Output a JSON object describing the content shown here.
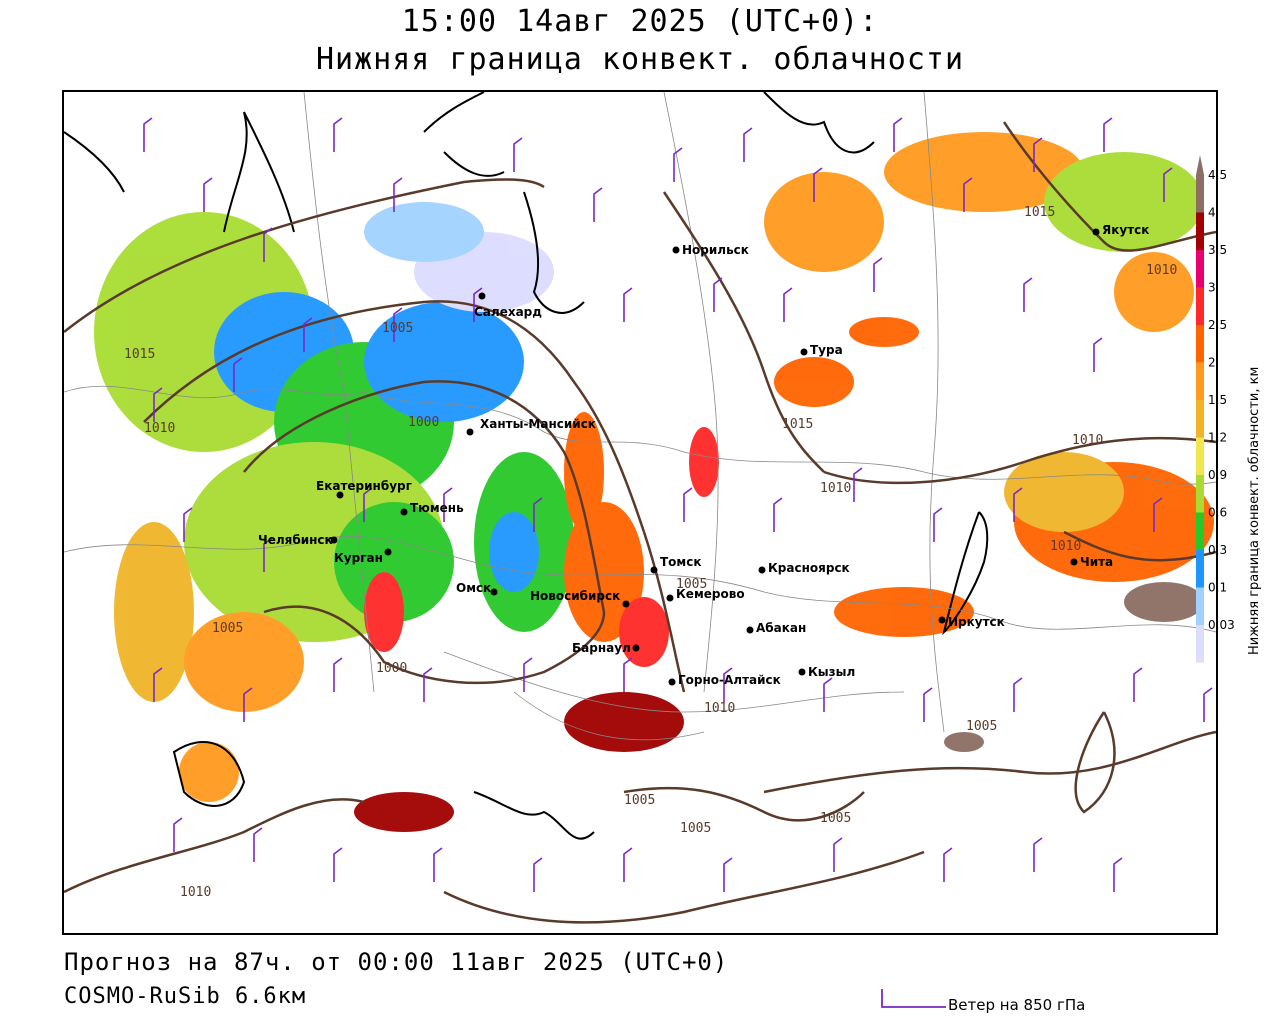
{
  "header": {
    "title_line1": "15:00 14авг 2025 (UTC+0):",
    "title_line2": "Нижняя граница конвект. облачности"
  },
  "footer": {
    "forecast": "Прогноз на 87ч. от 00:00 11авг 2025 (UTC+0)",
    "model": "COSMO-RuSib 6.6км",
    "wind_legend": "Ветер на 850 гПа"
  },
  "legend": {
    "title": "Нижняя граница конвект. облачности, км",
    "ticks": [
      "4.5",
      "4",
      "3.5",
      "3",
      "2.5",
      "2",
      "1.5",
      "1.2",
      "0.9",
      "0.6",
      "0.3",
      "0.1",
      "0.03"
    ],
    "colors": [
      "#8c6e64",
      "#a00000",
      "#e8006e",
      "#ff2828",
      "#ff6400",
      "#ff9a1e",
      "#f0b428",
      "#f0e650",
      "#a8dc32",
      "#28c828",
      "#1e96ff",
      "#a0d2ff",
      "#dcdcff"
    ]
  },
  "cities": [
    {
      "name": "Норильск"
    },
    {
      "name": "Якутск"
    },
    {
      "name": "Салехард"
    },
    {
      "name": "Тура"
    },
    {
      "name": "Ханты-Мансийск"
    },
    {
      "name": "Екатеринбург"
    },
    {
      "name": "Тюмень"
    },
    {
      "name": "Челябинск"
    },
    {
      "name": "Курган"
    },
    {
      "name": "Омск"
    },
    {
      "name": "Новосибирск"
    },
    {
      "name": "Томск"
    },
    {
      "name": "Кемерово"
    },
    {
      "name": "Красноярск"
    },
    {
      "name": "Барнаул"
    },
    {
      "name": "Абакан"
    },
    {
      "name": "Иркутск"
    },
    {
      "name": "Чита"
    },
    {
      "name": "Кызыл"
    },
    {
      "name": "Горно-Алтайск"
    }
  ],
  "isobar_labels": [
    "1015",
    "1010",
    "1005",
    "1000",
    "1015",
    "1010",
    "1010",
    "1015",
    "1010",
    "1005",
    "1005",
    "1005",
    "1005",
    "1010",
    "1005",
    "1010",
    "1000",
    "1005",
    "1010"
  ],
  "colors": {
    "isobar": "#5a3a2a",
    "wind_barb": "#7a28c8",
    "border": "#000000"
  }
}
